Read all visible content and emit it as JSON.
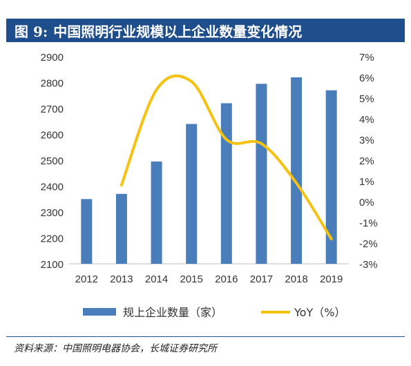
{
  "header": {
    "figure_label": "图 9:",
    "title": "中国照明行业规模以上企业数量变化情况"
  },
  "source": "资料来源：中国照明电器协会，长城证券研究所",
  "colors": {
    "title_bar": "#1f4e8c",
    "bar": "#4a7ebb",
    "line": "#f5c211"
  },
  "chart_data": {
    "type": "bar",
    "categories": [
      "2012",
      "2013",
      "2014",
      "2015",
      "2016",
      "2017",
      "2018",
      "2019"
    ],
    "series": [
      {
        "name": "规上企业数量（家）",
        "type": "bar",
        "axis": "left",
        "values": [
          2350,
          2370,
          2495,
          2640,
          2720,
          2795,
          2820,
          2770
        ]
      },
      {
        "name": "YoY（%）",
        "type": "line",
        "axis": "right",
        "smooth": true,
        "values": [
          null,
          0.8,
          5.4,
          5.8,
          3.0,
          2.8,
          0.9,
          -1.8
        ]
      }
    ],
    "y_left": {
      "range": [
        2100,
        2900
      ],
      "ticks": [
        "2100",
        "2200",
        "2300",
        "2400",
        "2500",
        "2600",
        "2700",
        "2800",
        "2900"
      ]
    },
    "y_right": {
      "range": [
        -3,
        7
      ],
      "ticks": [
        "-3%",
        "-2%",
        "-1%",
        "0%",
        "1%",
        "2%",
        "3%",
        "4%",
        "5%",
        "6%",
        "7%"
      ]
    },
    "grid": false,
    "legend": "bottom"
  }
}
